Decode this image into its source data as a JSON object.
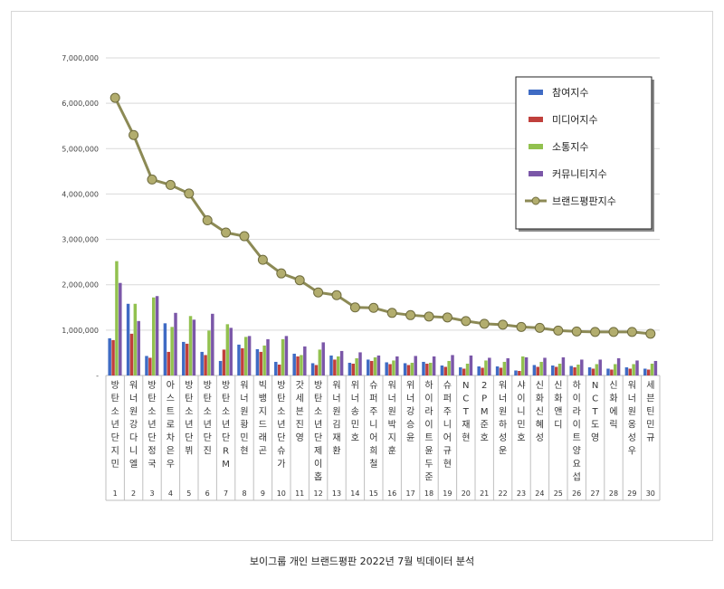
{
  "caption": "보이그룹 개인 브랜드평판  2022년 7월 빅데이터 분석",
  "chart_data": {
    "type": "bar",
    "title": "",
    "xlabel": "",
    "ylabel": "",
    "ylim": [
      0,
      7000000
    ],
    "y_ticks": [
      "-",
      "1,000,000",
      "2,000,000",
      "3,000,000",
      "4,000,000",
      "5,000,000",
      "6,000,000",
      "7,000,000"
    ],
    "categories": [
      "방탄소년단 지민",
      "워너원 강다니엘",
      "방탄소년단 정국",
      "아스트로 차은우",
      "방탄소년단 뷔",
      "방탄소년단 진",
      "방탄소년단 RM",
      "워너원 황민현",
      "빅뱅 지드래곤",
      "방탄소년단 슈가",
      "갓세븐 진영",
      "방탄소년단 제이홉",
      "워너원 김재환",
      "위너 송민호",
      "슈퍼주니어 희철",
      "워너원 박지훈",
      "위너 강승윤",
      "하이라이트 윤두준",
      "슈퍼주니어 규현",
      "NCT 재현",
      "2PM 준호",
      "워너원 하성운",
      "샤이니 민호",
      "신화 신혜성",
      "신화 앤디",
      "하이라이트 양요섭",
      "NCT 도영",
      "신화 에릭",
      "워너원 옹성우",
      "세븐틴 민규"
    ],
    "ranks": [
      "1",
      "2",
      "3",
      "4",
      "5",
      "6",
      "7",
      "8",
      "9",
      "10",
      "11",
      "12",
      "13",
      "14",
      "15",
      "16",
      "17",
      "18",
      "19",
      "20",
      "21",
      "22",
      "23",
      "24",
      "25",
      "26",
      "27",
      "28",
      "29",
      "30"
    ],
    "legend_position": "top-right",
    "series": [
      {
        "name": "참여지수",
        "kind": "bar",
        "color": "#3f6bc4",
        "values": [
          820000,
          1580000,
          430000,
          1150000,
          740000,
          520000,
          320000,
          680000,
          580000,
          300000,
          480000,
          270000,
          440000,
          280000,
          350000,
          290000,
          270000,
          300000,
          220000,
          180000,
          200000,
          200000,
          110000,
          230000,
          220000,
          210000,
          180000,
          150000,
          180000,
          150000
        ]
      },
      {
        "name": "미디어지수",
        "kind": "bar",
        "color": "#c0403c",
        "values": [
          780000,
          920000,
          390000,
          520000,
          700000,
          450000,
          570000,
          600000,
          520000,
          240000,
          420000,
          230000,
          350000,
          260000,
          320000,
          250000,
          230000,
          260000,
          190000,
          150000,
          170000,
          170000,
          100000,
          190000,
          190000,
          180000,
          150000,
          130000,
          150000,
          130000
        ]
      },
      {
        "name": "소통지수",
        "kind": "bar",
        "color": "#92c14f",
        "values": [
          2520000,
          1580000,
          1720000,
          1070000,
          1310000,
          990000,
          1130000,
          850000,
          660000,
          800000,
          450000,
          570000,
          420000,
          380000,
          400000,
          330000,
          280000,
          280000,
          320000,
          260000,
          330000,
          300000,
          420000,
          300000,
          260000,
          240000,
          250000,
          250000,
          250000,
          260000
        ]
      },
      {
        "name": "커뮤니티지수",
        "kind": "bar",
        "color": "#7b57a8",
        "values": [
          2040000,
          1200000,
          1750000,
          1380000,
          1230000,
          1360000,
          1050000,
          870000,
          800000,
          870000,
          640000,
          730000,
          540000,
          510000,
          440000,
          420000,
          430000,
          420000,
          450000,
          440000,
          390000,
          380000,
          400000,
          390000,
          400000,
          350000,
          350000,
          380000,
          330000,
          320000
        ]
      },
      {
        "name": "브랜드평판지수",
        "kind": "line",
        "color": "#8c8a55",
        "values": [
          6120000,
          5300000,
          4320000,
          4200000,
          4010000,
          3420000,
          3150000,
          3070000,
          2550000,
          2250000,
          2100000,
          1830000,
          1770000,
          1500000,
          1490000,
          1380000,
          1330000,
          1300000,
          1280000,
          1200000,
          1140000,
          1120000,
          1070000,
          1050000,
          990000,
          970000,
          960000,
          960000,
          960000,
          920000
        ]
      }
    ]
  }
}
